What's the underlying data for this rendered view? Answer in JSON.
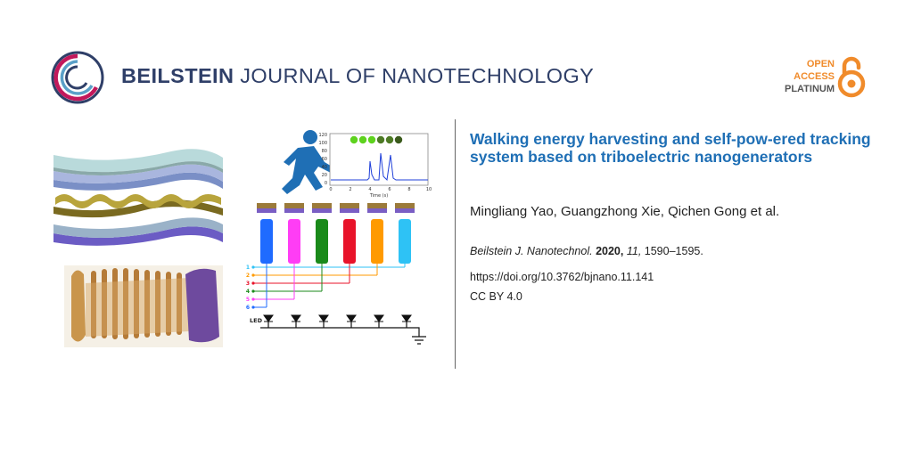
{
  "journal": {
    "name_bold": "BEILSTEIN",
    "name_rest": "JOURNAL OF NANOTECHNOLOGY"
  },
  "open_access": {
    "line1": "OPEN",
    "line2": "ACCESS",
    "line3": "PLATINUM"
  },
  "article": {
    "title": "Walking energy harvesting and self-pow-ered tracking system based on triboelectric nanogenerators",
    "authors": "Mingliang Yao, Guangzhong Xie, Qichen Gong et al.",
    "citation": {
      "journal": "Beilstein J. Nanotechnol.",
      "year": "2020,",
      "volume": "11,",
      "pages": "1590–1595."
    },
    "doi": "https://doi.org/10.3762/bjnano.11.141",
    "license": "CC BY 4.0"
  },
  "figure": {
    "plot": {
      "y_ticks": [
        "120",
        "100",
        "80",
        "60",
        "40",
        "20",
        "0"
      ],
      "x_ticks": [
        "0",
        "2",
        "4",
        "6",
        "8",
        "10"
      ],
      "x_label": "Time (s)"
    },
    "channel_numbers": [
      "1",
      "2",
      "3",
      "4",
      "5",
      "6"
    ],
    "led_label": "LED",
    "colors": {
      "channel_1": "#1f6bff",
      "channel_2": "#ff3df5",
      "channel_3": "#1a8a1a",
      "channel_4": "#e8132a",
      "channel_5": "#ff9a00",
      "channel_6": "#2ec2f5",
      "brand_blue": "#1f6fb5",
      "oa_orange": "#f08b2b"
    }
  }
}
